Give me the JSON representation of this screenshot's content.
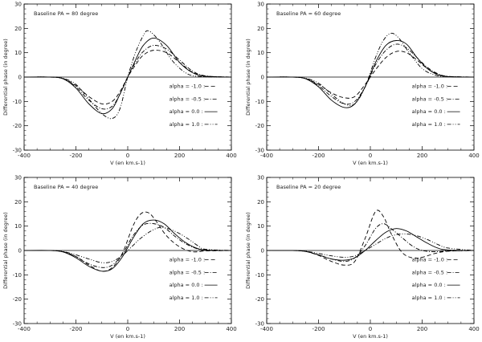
{
  "chart_data": [
    {
      "type": "line",
      "title": "Baseline PA = 80 degree",
      "xlabel": "V (en km.s-1)",
      "ylabel": "Differential phase (in degree)",
      "xlim": [
        -400,
        400
      ],
      "ylim": [
        -30,
        30
      ],
      "xticks": [
        -400,
        -200,
        0,
        200,
        400
      ],
      "yticks": [
        -30,
        -20,
        -10,
        0,
        10,
        20,
        30
      ],
      "legend_position": "bottom-right",
      "series": [
        {
          "name": "alpha = -1.0 :",
          "dash": "dashed",
          "x": [
            -400,
            -300,
            -250,
            -200,
            -150,
            -100,
            -60,
            -30,
            0,
            30,
            60,
            100,
            150,
            200,
            250,
            300,
            400
          ],
          "values": [
            0,
            0,
            -0.6,
            -3.5,
            -8,
            -11,
            -10,
            -6,
            0,
            5,
            9,
            11,
            10,
            6,
            2,
            0.4,
            0
          ]
        },
        {
          "name": "alpha = -0.5 :",
          "dash": "dashdot",
          "x": [
            -400,
            -300,
            -250,
            -200,
            -150,
            -100,
            -60,
            -30,
            0,
            30,
            60,
            100,
            150,
            200,
            250,
            300,
            400
          ],
          "values": [
            0,
            0,
            -0.6,
            -4,
            -9.5,
            -13,
            -12,
            -7,
            0,
            6,
            10.5,
            13,
            11.5,
            7,
            2.5,
            0.5,
            0
          ]
        },
        {
          "name": "alpha = 0.0 :",
          "dash": "solid",
          "x": [
            -400,
            -300,
            -250,
            -200,
            -150,
            -100,
            -60,
            -30,
            0,
            30,
            60,
            100,
            150,
            200,
            250,
            300,
            400
          ],
          "values": [
            0,
            0,
            -0.7,
            -4.5,
            -11,
            -15,
            -13,
            -7,
            0,
            7,
            13,
            16,
            13,
            6,
            1.8,
            0.3,
            0
          ]
        },
        {
          "name": "alpha = 1.0 :",
          "dash": "dashdotdot",
          "x": [
            -400,
            -300,
            -250,
            -200,
            -150,
            -100,
            -60,
            -30,
            0,
            30,
            60,
            80,
            120,
            170,
            220,
            270,
            400
          ],
          "values": [
            0,
            0,
            -0.5,
            -3,
            -9,
            -15,
            -17,
            -13,
            0,
            10,
            17,
            19,
            15,
            7,
            2,
            0.3,
            0
          ]
        }
      ]
    },
    {
      "type": "line",
      "title": "Baseline PA = 60 degree",
      "xlabel": "V (en km.s-1)",
      "ylabel": "Differential phase (in degree)",
      "xlim": [
        -400,
        400
      ],
      "ylim": [
        -30,
        30
      ],
      "xticks": [
        -400,
        -200,
        0,
        200,
        400
      ],
      "yticks": [
        -30,
        -20,
        -10,
        0,
        10,
        20,
        30
      ],
      "legend_position": "bottom-right",
      "series": [
        {
          "name": "alpha = -1.0 :",
          "dash": "dashed",
          "x": [
            -400,
            -300,
            -250,
            -200,
            -150,
            -100,
            -60,
            -20,
            20,
            60,
            100,
            140,
            180,
            220,
            260,
            300,
            400
          ],
          "values": [
            0,
            0,
            -0.6,
            -3,
            -6.5,
            -8.5,
            -8,
            -3,
            3,
            8,
            10.5,
            10,
            7,
            3.5,
            1.2,
            0.2,
            0
          ]
        },
        {
          "name": "alpha = -0.5 :",
          "dash": "dashdot",
          "x": [
            -400,
            -300,
            -250,
            -200,
            -150,
            -100,
            -60,
            -20,
            20,
            60,
            100,
            140,
            180,
            220,
            260,
            300,
            400
          ],
          "values": [
            0,
            0,
            -0.6,
            -3.5,
            -8,
            -11,
            -10,
            -4,
            5,
            11,
            13.5,
            12,
            8,
            4,
            1.4,
            0.3,
            0
          ]
        },
        {
          "name": "alpha = 0.0 :",
          "dash": "solid",
          "x": [
            -400,
            -300,
            -250,
            -200,
            -150,
            -100,
            -60,
            -20,
            20,
            60,
            100,
            140,
            180,
            220,
            260,
            300,
            400
          ],
          "values": [
            0,
            0,
            -0.7,
            -4,
            -9.5,
            -12.5,
            -11,
            -4,
            6,
            13,
            15,
            13.5,
            8,
            3.5,
            1,
            0.2,
            0
          ]
        },
        {
          "name": "alpha = 1.0 :",
          "dash": "dashdotdot",
          "x": [
            -400,
            -300,
            -250,
            -200,
            -150,
            -100,
            -60,
            -20,
            20,
            50,
            80,
            110,
            150,
            200,
            250,
            300,
            400
          ],
          "values": [
            0,
            0,
            -0.5,
            -2.5,
            -7,
            -11,
            -11,
            -4,
            8,
            15,
            18,
            16,
            10,
            3.5,
            0.8,
            0.2,
            0
          ]
        }
      ]
    },
    {
      "type": "line",
      "title": "Baseline PA = 40 degree",
      "xlabel": "V (en km.s-1)",
      "ylabel": "Differential phase (in degree)",
      "xlim": [
        -400,
        400
      ],
      "ylim": [
        -30,
        30
      ],
      "xticks": [
        -400,
        -200,
        0,
        200,
        400
      ],
      "yticks": [
        -30,
        -20,
        -10,
        0,
        10,
        20,
        30
      ],
      "legend_position": "bottom-right",
      "series": [
        {
          "name": "alpha = -1.0 :",
          "dash": "dashed",
          "x": [
            -400,
            -300,
            -250,
            -200,
            -150,
            -100,
            -60,
            -20,
            20,
            50,
            80,
            110,
            150,
            200,
            250,
            300,
            400
          ],
          "values": [
            0,
            0,
            -0.5,
            -2.5,
            -6,
            -8.5,
            -7,
            -1,
            10,
            15,
            15.5,
            12,
            6,
            1.5,
            -0.5,
            -0.2,
            0
          ]
        },
        {
          "name": "alpha = -0.5 :",
          "dash": "dashdot",
          "x": [
            -400,
            -300,
            -250,
            -200,
            -150,
            -100,
            -60,
            -20,
            20,
            60,
            100,
            140,
            180,
            220,
            260,
            300,
            400
          ],
          "values": [
            0,
            0,
            -0.5,
            -2.5,
            -5.5,
            -7,
            -6,
            -1.5,
            6,
            10.5,
            11,
            9.5,
            6,
            3,
            1,
            0.2,
            0
          ]
        },
        {
          "name": "alpha = 0.0 :",
          "dash": "solid",
          "x": [
            -400,
            -300,
            -250,
            -200,
            -150,
            -100,
            -60,
            -20,
            20,
            60,
            100,
            140,
            180,
            220,
            260,
            300,
            400
          ],
          "values": [
            0,
            0,
            -0.6,
            -3,
            -6.5,
            -8.5,
            -7.5,
            -2.5,
            5,
            11,
            12.5,
            11,
            7,
            3.5,
            1.2,
            0.2,
            0
          ]
        },
        {
          "name": "alpha = 1.0 :",
          "dash": "dashdotdot",
          "x": [
            -400,
            -300,
            -250,
            -200,
            -150,
            -100,
            -60,
            -20,
            20,
            50,
            90,
            130,
            180,
            230,
            270,
            300,
            400
          ],
          "values": [
            0,
            0,
            -0.4,
            -1.8,
            -3.5,
            -5,
            -4.5,
            -2,
            2,
            5,
            8,
            9.5,
            8,
            5,
            2,
            0.5,
            0
          ]
        }
      ]
    },
    {
      "type": "line",
      "title": "Baseline PA = 20 degree",
      "xlabel": "V (en km.s-1)",
      "ylabel": "Differential phase (in degree)",
      "xlim": [
        -400,
        400
      ],
      "ylim": [
        -30,
        30
      ],
      "xticks": [
        -400,
        -200,
        0,
        200,
        400
      ],
      "yticks": [
        -30,
        -20,
        -10,
        0,
        10,
        20,
        30
      ],
      "legend_position": "bottom-right",
      "series": [
        {
          "name": "alpha = -1.0 :",
          "dash": "dashed",
          "x": [
            -400,
            -300,
            -250,
            -200,
            -150,
            -100,
            -60,
            -20,
            20,
            50,
            80,
            120,
            160,
            200,
            250,
            300,
            400
          ],
          "values": [
            0,
            0,
            -0.4,
            -2,
            -4.5,
            -6,
            -4.5,
            5,
            16,
            14,
            7,
            -0.5,
            -3,
            -2.8,
            -1.2,
            -0.3,
            0
          ]
        },
        {
          "name": "alpha = -0.5 :",
          "dash": "dashdot",
          "x": [
            -400,
            -300,
            -250,
            -200,
            -150,
            -100,
            -60,
            -20,
            20,
            50,
            80,
            120,
            160,
            200,
            250,
            300,
            400
          ],
          "values": [
            0,
            0,
            -0.4,
            -1.8,
            -3.5,
            -4.5,
            -3,
            2,
            9,
            11,
            9,
            5.5,
            2,
            0,
            -0.5,
            -0.2,
            0
          ]
        },
        {
          "name": "alpha = 0.0 :",
          "dash": "solid",
          "x": [
            -400,
            -300,
            -250,
            -200,
            -150,
            -100,
            -60,
            -20,
            20,
            60,
            100,
            140,
            180,
            220,
            260,
            300,
            400
          ],
          "values": [
            0,
            0,
            -0.4,
            -1.8,
            -3.5,
            -4,
            -3,
            0,
            4,
            7.5,
            9,
            8,
            5.5,
            3,
            1,
            0.2,
            0
          ]
        },
        {
          "name": "alpha = 1.0 :",
          "dash": "dashdotdot",
          "x": [
            -400,
            -300,
            -250,
            -200,
            -150,
            -100,
            -60,
            -20,
            20,
            60,
            100,
            140,
            180,
            220,
            260,
            300,
            400
          ],
          "values": [
            0,
            0,
            -0.3,
            -1.2,
            -2.2,
            -2.8,
            -2.2,
            0,
            2.5,
            5,
            6.5,
            6.8,
            6,
            4.5,
            2.5,
            1,
            0
          ]
        }
      ]
    }
  ]
}
